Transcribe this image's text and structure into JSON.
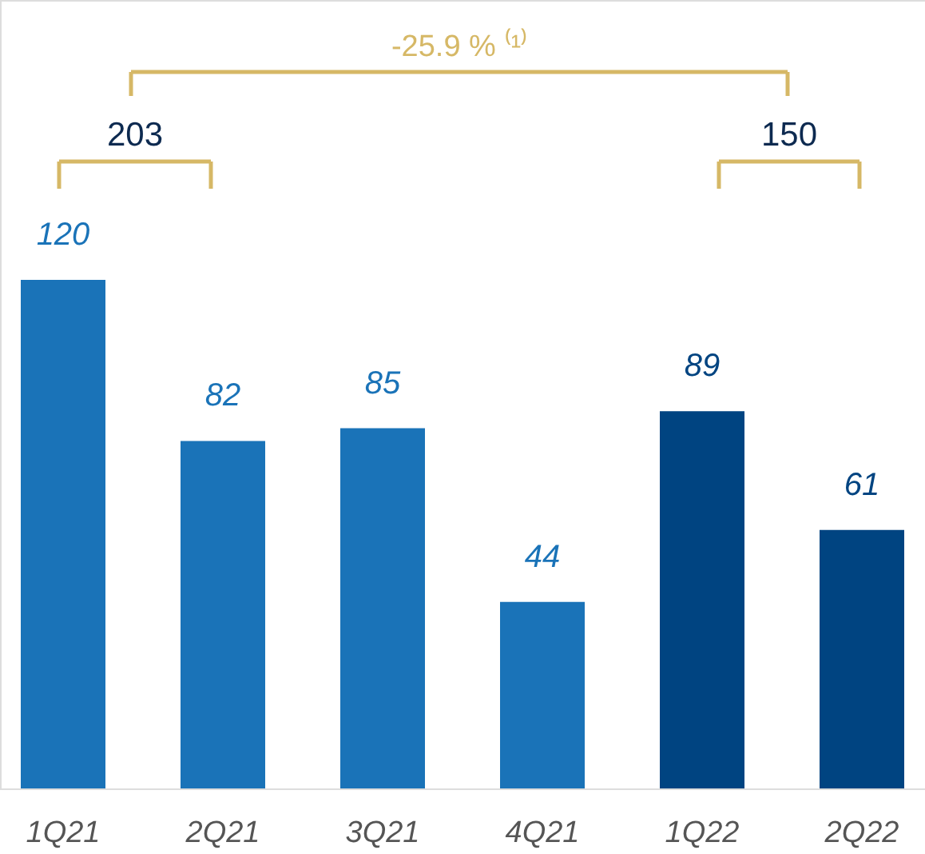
{
  "chart_data": {
    "type": "bar",
    "categories": [
      "1Q21",
      "2Q21",
      "3Q21",
      "4Q21",
      "1Q22",
      "2Q22"
    ],
    "values": [
      120,
      82,
      85,
      44,
      89,
      61
    ],
    "colors": [
      "#1a73b8",
      "#1a73b8",
      "#1a73b8",
      "#1a73b8",
      "#004481",
      "#004481"
    ],
    "data_labels": true,
    "annotations": [
      "-25.9 % ⁽¹⁾",
      "203",
      "150"
    ]
  }
}
